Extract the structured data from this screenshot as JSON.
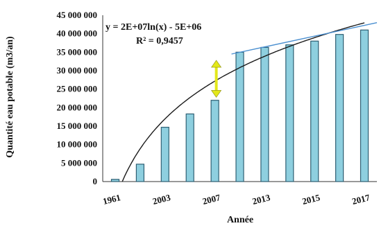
{
  "chart_data": {
    "type": "bar",
    "categories": [
      "1961",
      "",
      "2003",
      "",
      "2007",
      "",
      "2013",
      "",
      "2015",
      "",
      "2017"
    ],
    "values": [
      600000,
      4700000,
      14700000,
      18300000,
      22000000,
      35000000,
      36300000,
      37000000,
      38000000,
      39800000,
      41000000
    ],
    "ylabel": "Quantité eau potable (m3/an)",
    "xlabel": "Année",
    "ylim": [
      0,
      45000000
    ],
    "yticks": [
      "0",
      "5 000 000",
      "10 000 000",
      "15 000 000",
      "20 000 000",
      "25 000 000",
      "30 000 000",
      "35 000 000",
      "40 000 000",
      "45 000 000"
    ],
    "grid": false,
    "annotations": {
      "equation": "y = 2E+07ln(x) - 5E+06",
      "r_squared": "R² = 0,9457"
    },
    "colors": {
      "bar_fill": "#8ECFDF",
      "bar_stroke": "#2E5F73",
      "trend": "#1a1a1a",
      "upper_line": "#4A8FD0",
      "arrow": "#E3E81A"
    }
  }
}
